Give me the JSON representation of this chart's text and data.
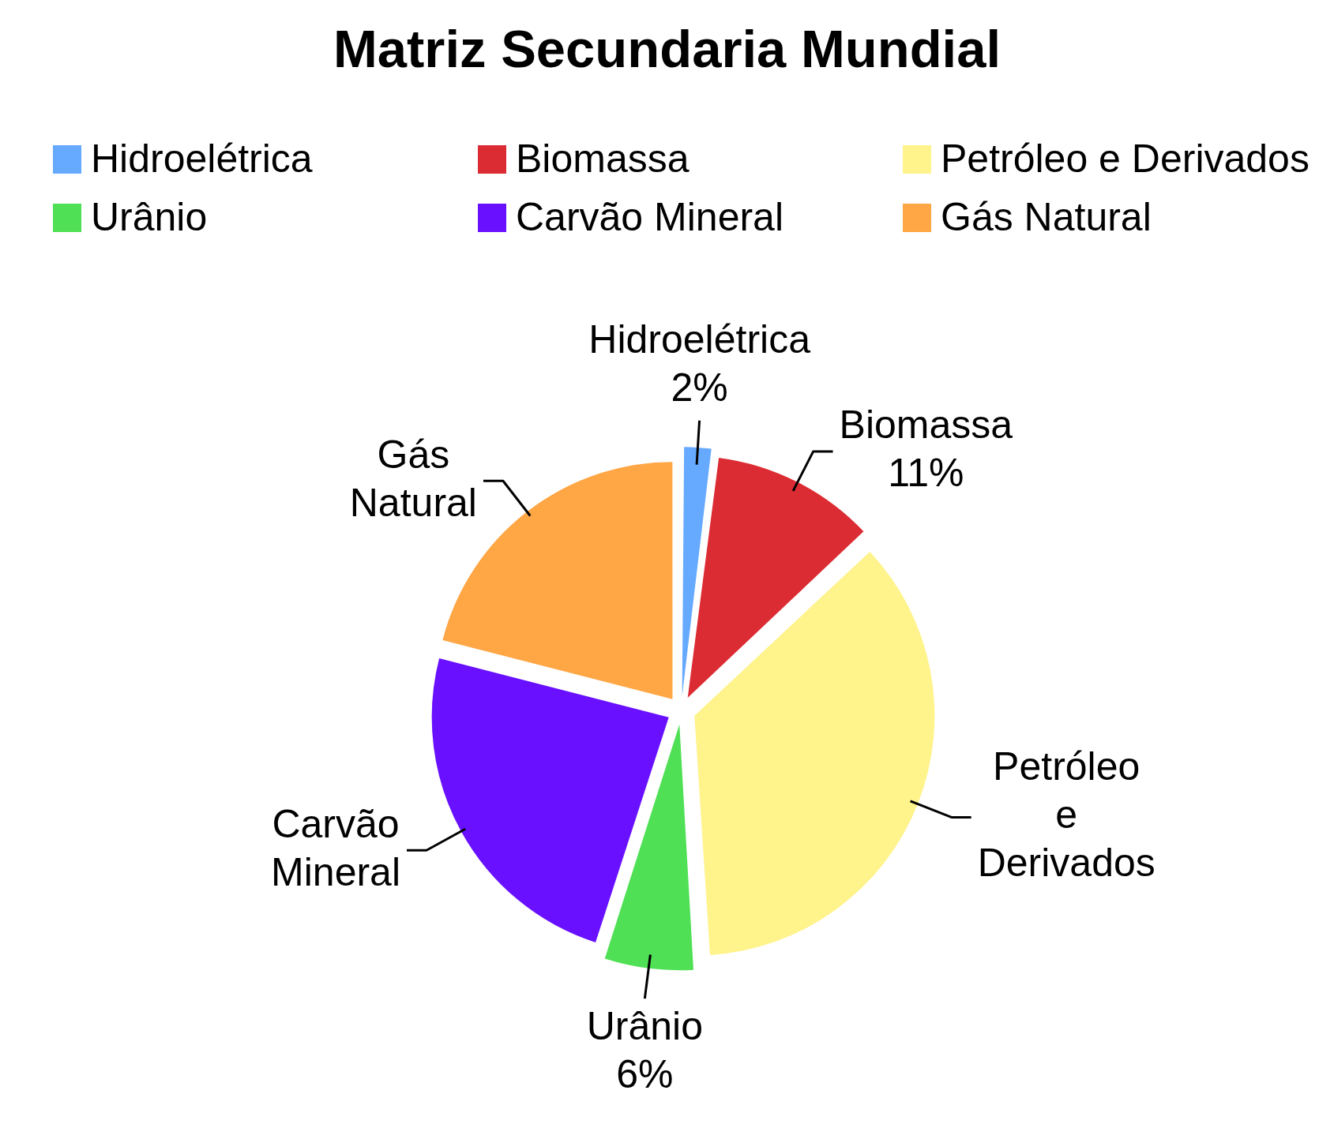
{
  "chart_data": {
    "type": "pie",
    "title": "Matriz Secundaria Mundial",
    "categories": [
      "Hidroelétrica",
      "Biomassa",
      "Petróleo e Derivados",
      "Urânio",
      "Carvão Mineral",
      "Gás Natural"
    ],
    "values": [
      2,
      11,
      36,
      6,
      24,
      21
    ],
    "colors": [
      "#66aaff",
      "#dc2c33",
      "#fff38c",
      "#4fe055",
      "#6810ff",
      "#ffa645"
    ],
    "value_labels": [
      "2%",
      "11%",
      null,
      "6%",
      null,
      null
    ],
    "legend": "top"
  }
}
